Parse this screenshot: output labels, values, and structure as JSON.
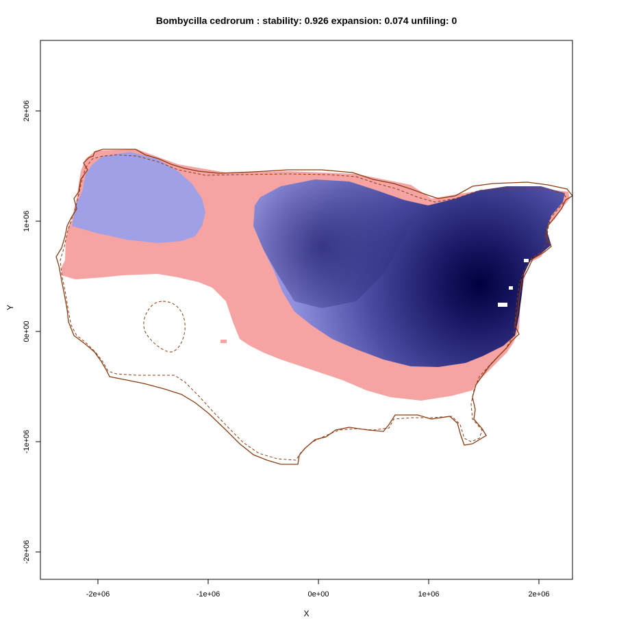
{
  "title": "Bombycilla cedrorum : stability: 0.926 expansion: 0.074 unfiling: 0",
  "axes": {
    "xlabel": "X",
    "ylabel": "Y",
    "x_ticks": [
      "-2e+06",
      "-1e+06",
      "0e+00",
      "1e+06",
      "2e+06"
    ],
    "y_ticks": [
      "2e+06",
      "1e+06",
      "0e+00",
      "-1e+06",
      "-2e+06"
    ],
    "xlim": [
      -2500000,
      2300000
    ],
    "ylim": [
      -2250000,
      2650000
    ]
  },
  "layers": {
    "expansion_color": "#f5a3a3",
    "stability_color_light": "#aaaaf2",
    "stability_color_dark": "#000044",
    "native_outline_color": "#8b3a0f",
    "invaded_outline_color": "#8b3a0f"
  }
}
